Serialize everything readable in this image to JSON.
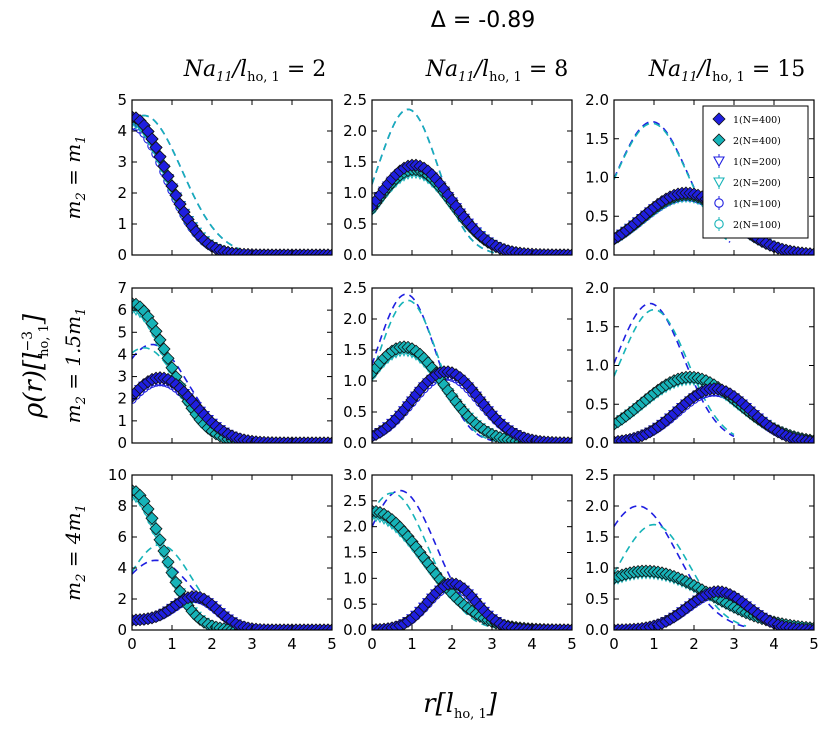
{
  "figure": {
    "title": "Δ = -0.89",
    "xlabel": {
      "main": "r",
      "sub": "ho, 1",
      "prefix": "l"
    },
    "ylabel": {
      "main": "ρ(r)",
      "base": "l",
      "sub": "ho, 1",
      "sup": "−3"
    },
    "columns": [
      {
        "lhs": "Na",
        "lhs_sub": "11",
        "slash": "/l",
        "den_sub": "ho, 1",
        "value": "2"
      },
      {
        "lhs": "Na",
        "lhs_sub": "11",
        "slash": "/l",
        "den_sub": "ho, 1",
        "value": "8"
      },
      {
        "lhs": "Na",
        "lhs_sub": "11",
        "slash": "/l",
        "den_sub": "ho, 1",
        "value": "15"
      }
    ],
    "rows": [
      {
        "label": "m",
        "sub": "2",
        "rhs": " = m",
        "rhs_sub": "1",
        "coef": ""
      },
      {
        "label": "m",
        "sub": "2",
        "rhs": " = 1.5m",
        "rhs_sub": "1",
        "coef": ""
      },
      {
        "label": "m",
        "sub": "2",
        "rhs": " = 4m",
        "rhs_sub": "1",
        "coef": ""
      }
    ],
    "legend": [
      {
        "label": "1(N=400)",
        "marker": "diamond",
        "color": "#1f1fe0",
        "fill": "#1f1fe0"
      },
      {
        "label": "2(N=400)",
        "marker": "diamond",
        "color": "#16b3b8",
        "fill": "#16b3b8"
      },
      {
        "label": "1(N=200)",
        "marker": "triangle-down",
        "color": "#1f1fe0",
        "fill": "none"
      },
      {
        "label": "2(N=200)",
        "marker": "triangle-down",
        "color": "#16b3b8",
        "fill": "none"
      },
      {
        "label": "1(N=100)",
        "marker": "circle",
        "color": "#1f1fe0",
        "fill": "none"
      },
      {
        "label": "2(N=100)",
        "marker": "circle",
        "color": "#16b3b8",
        "fill": "none"
      }
    ],
    "colors": {
      "species1": "#1f1fe0",
      "species2": "#16b3b8",
      "axis": "#000000"
    }
  },
  "chart_data": {
    "type": "scatter",
    "xlim": [
      0,
      5
    ],
    "xticks": [
      "0",
      "1",
      "2",
      "3",
      "4",
      "5"
    ],
    "panels": [
      {
        "row": 0,
        "col": 0,
        "ylim": [
          0,
          5
        ],
        "yticks": [
          "0",
          "1",
          "2",
          "3",
          "4",
          "5"
        ],
        "s1": {
          "shape": "gauss",
          "A": 4.45,
          "mu": 0.0,
          "sigma": 0.85,
          "extra": 0
        },
        "s2": {
          "shape": "gauss",
          "A": 4.45,
          "mu": 0.0,
          "sigma": 0.85,
          "extra": 0
        },
        "mf1": {
          "A": 4.5,
          "mu": 0.3,
          "sigma": 0.95,
          "cut": 2.7
        },
        "mf2": {
          "A": 4.5,
          "mu": 0.3,
          "sigma": 0.95,
          "cut": 2.7
        }
      },
      {
        "row": 0,
        "col": 1,
        "ylim": [
          0,
          2.5
        ],
        "yticks": [
          "0.0",
          "0.5",
          "1.0",
          "1.5",
          "2.0",
          "2.5"
        ],
        "s1": {
          "shape": "gauss",
          "A": 1.45,
          "mu": 1.05,
          "sigma": 0.95,
          "extra": 0
        },
        "s2": {
          "shape": "gauss",
          "A": 1.38,
          "mu": 1.05,
          "sigma": 0.95,
          "extra": 0
        },
        "mf1": {
          "A": 2.35,
          "mu": 0.9,
          "sigma": 0.75,
          "cut": 3.1
        },
        "mf2": {
          "A": 2.35,
          "mu": 0.9,
          "sigma": 0.75,
          "cut": 3.1
        }
      },
      {
        "row": 0,
        "col": 2,
        "ylim": [
          0,
          2.0
        ],
        "yticks": [
          "0.0",
          "0.5",
          "1.0",
          "1.5",
          "2.0"
        ],
        "s1": {
          "shape": "gauss",
          "A": 0.8,
          "mu": 1.8,
          "sigma": 1.1,
          "extra": 0
        },
        "s2": {
          "shape": "gauss",
          "A": 0.78,
          "mu": 1.8,
          "sigma": 1.1,
          "extra": 0
        },
        "mf1": {
          "A": 1.72,
          "mu": 0.95,
          "sigma": 0.9,
          "cut": 2.9
        },
        "mf2": {
          "A": 1.7,
          "mu": 0.95,
          "sigma": 0.9,
          "cut": 2.9
        }
      },
      {
        "row": 1,
        "col": 0,
        "ylim": [
          0,
          7
        ],
        "yticks": [
          "0",
          "1",
          "2",
          "3",
          "4",
          "5",
          "6",
          "7"
        ],
        "s1": {
          "shape": "gauss",
          "A": 2.95,
          "mu": 0.7,
          "sigma": 0.85,
          "extra": 0
        },
        "s2": {
          "shape": "gauss",
          "A": 6.3,
          "mu": 0.0,
          "sigma": 0.9,
          "extra": 0
        },
        "mf1": {
          "A": 4.45,
          "mu": 0.5,
          "sigma": 0.9,
          "cut": 2.6
        },
        "mf2": {
          "A": 4.3,
          "mu": 0.3,
          "sigma": 0.9,
          "cut": 2.6
        }
      },
      {
        "row": 1,
        "col": 1,
        "ylim": [
          0,
          2.5
        ],
        "yticks": [
          "0.0",
          "0.5",
          "1.0",
          "1.5",
          "2.0",
          "2.5"
        ],
        "s1": {
          "shape": "gauss",
          "A": 1.15,
          "mu": 1.85,
          "sigma": 0.85,
          "extra": 0
        },
        "s2": {
          "shape": "gauss",
          "A": 1.55,
          "mu": 0.8,
          "sigma": 1.0,
          "extra": 0
        },
        "mf1": {
          "A": 2.4,
          "mu": 0.85,
          "sigma": 0.75,
          "cut": 3.1
        },
        "mf2": {
          "A": 2.3,
          "mu": 0.9,
          "sigma": 0.75,
          "cut": 3.1
        }
      },
      {
        "row": 1,
        "col": 2,
        "ylim": [
          0,
          2.0
        ],
        "yticks": [
          "0.0",
          "0.5",
          "1.0",
          "1.5",
          "2.0"
        ],
        "s1": {
          "shape": "gauss",
          "A": 0.7,
          "mu": 2.5,
          "sigma": 0.9,
          "extra": 0
        },
        "s2": {
          "shape": "gauss",
          "A": 0.85,
          "mu": 1.9,
          "sigma": 1.2,
          "extra": 0
        },
        "mf1": {
          "A": 1.8,
          "mu": 0.9,
          "sigma": 0.85,
          "cut": 3.0
        },
        "mf2": {
          "A": 1.72,
          "mu": 1.0,
          "sigma": 0.85,
          "cut": 3.0
        }
      },
      {
        "row": 2,
        "col": 0,
        "ylim": [
          0,
          10
        ],
        "yticks": [
          "0",
          "2",
          "4",
          "6",
          "8",
          "10"
        ],
        "s1": {
          "shape": "gauss",
          "A": 2.05,
          "mu": 1.6,
          "sigma": 0.55,
          "extra": 0.6
        },
        "s2": {
          "shape": "gauss",
          "A": 9.0,
          "mu": 0.0,
          "sigma": 0.75,
          "extra": 0
        },
        "mf1": {
          "A": 4.5,
          "mu": 0.6,
          "sigma": 0.9,
          "cut": 2.6
        },
        "mf2": {
          "A": 5.5,
          "mu": 0.7,
          "sigma": 0.8,
          "cut": 2.6
        }
      },
      {
        "row": 2,
        "col": 1,
        "ylim": [
          0,
          3.0
        ],
        "yticks": [
          "0.0",
          "0.5",
          "1.0",
          "1.5",
          "2.0",
          "2.5",
          "3.0"
        ],
        "s1": {
          "shape": "gauss",
          "A": 0.9,
          "mu": 2.0,
          "sigma": 0.6,
          "extra": 0
        },
        "s2": {
          "shape": "gauss",
          "A": 2.3,
          "mu": 0.0,
          "sigma": 1.3,
          "extra": 0
        },
        "mf1": {
          "A": 2.7,
          "mu": 0.7,
          "sigma": 0.9,
          "cut": 3.1
        },
        "mf2": {
          "A": 2.65,
          "mu": 0.5,
          "sigma": 0.9,
          "cut": 3.1
        }
      },
      {
        "row": 2,
        "col": 2,
        "ylim": [
          0,
          2.5
        ],
        "yticks": [
          "0.0",
          "0.5",
          "1.0",
          "1.5",
          "2.0",
          "2.5"
        ],
        "s1": {
          "shape": "gauss",
          "A": 0.62,
          "mu": 2.6,
          "sigma": 0.75,
          "extra": 0
        },
        "s2": {
          "shape": "gauss",
          "A": 0.95,
          "mu": 0.8,
          "sigma": 1.6,
          "extra": 0
        },
        "mf1": {
          "A": 2.0,
          "mu": 0.6,
          "sigma": 1.0,
          "cut": 3.3
        },
        "mf2": {
          "A": 1.7,
          "mu": 1.0,
          "sigma": 0.9,
          "cut": 3.3
        }
      }
    ]
  }
}
